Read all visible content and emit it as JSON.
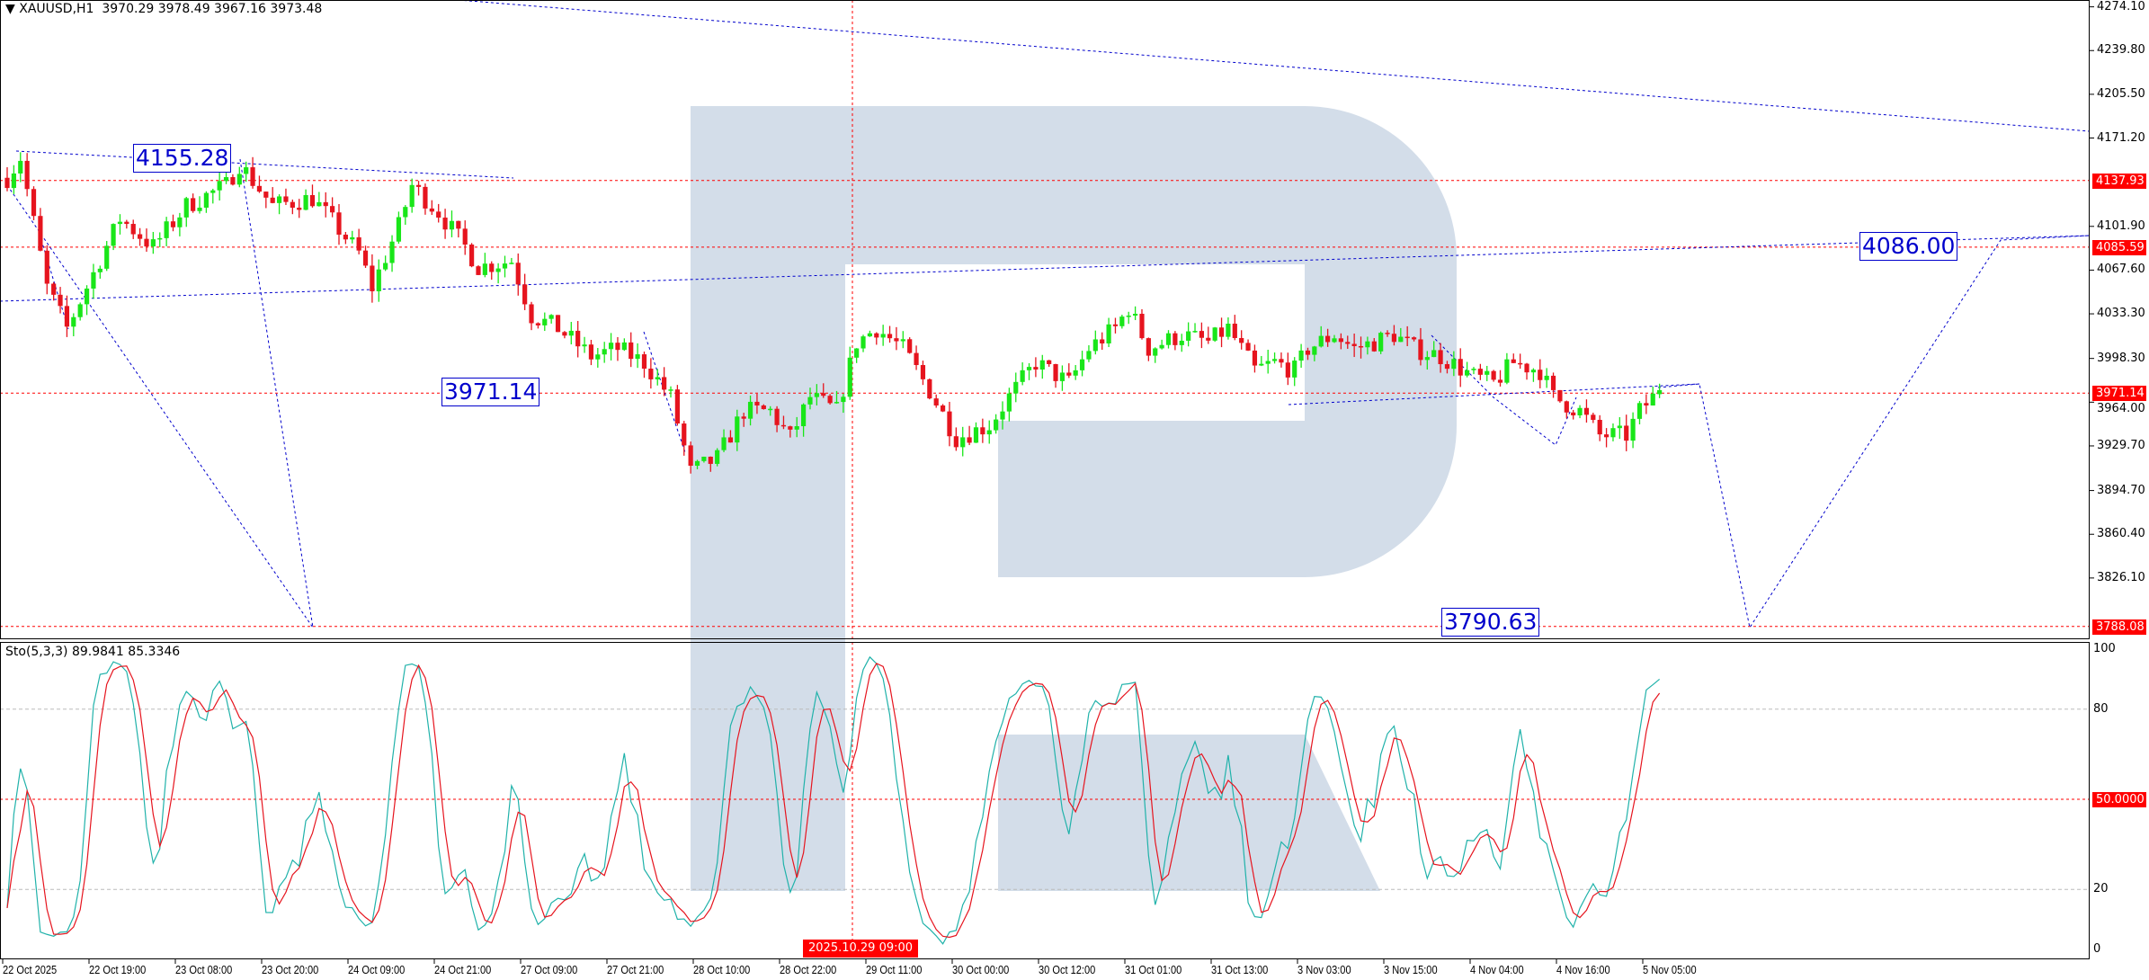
{
  "header": {
    "symbol": "XAUUSD,H1",
    "ohlc": "3970.29 3978.49 3967.16 3973.48",
    "collapse_icon": "triangle-down-icon"
  },
  "indicator": {
    "label": "Sto(5,3,3) 89.9841 85.3346"
  },
  "colors": {
    "bull": "#19e619",
    "bear": "#e6141e",
    "stoch_main": "#20b2aa",
    "stoch_signal": "#e6141e",
    "levels": "#ff0000",
    "drawings": "#0000cc",
    "watermark": "#d3dde9"
  },
  "price_axis": {
    "ticks": [
      "4274.10",
      "4239.80",
      "4205.50",
      "4171.20",
      "4101.90",
      "4067.60",
      "4033.30",
      "3998.30",
      "3964.00",
      "3929.70",
      "3894.70",
      "3860.40",
      "3826.10"
    ],
    "levels": [
      "4137.93",
      "4085.59",
      "3971.14",
      "3788.08"
    ]
  },
  "stoch_axis": {
    "ticks": [
      "100",
      "80",
      "20",
      "0"
    ],
    "level_label": "50.0000"
  },
  "time_axis": {
    "labels": [
      "22 Oct 2025",
      "22 Oct 19:00",
      "23 Oct 08:00",
      "23 Oct 20:00",
      "24 Oct 09:00",
      "24 Oct 21:00",
      "27 Oct 09:00",
      "27 Oct 21:00",
      "28 Oct 10:00",
      "28 Oct 22:00",
      "29 Oct 11:00",
      "30 Oct 00:00",
      "30 Oct 12:00",
      "31 Oct 01:00",
      "31 Oct 13:00",
      "3 Nov 03:00",
      "3 Nov 15:00",
      "4 Nov 04:00",
      "4 Nov 16:00",
      "5 Nov 05:00"
    ],
    "crosshair_label": "2025.10.29 09:00"
  },
  "annotations": [
    "4155.28",
    "3971.14",
    "4086.00",
    "3790.63"
  ],
  "chart_data": {
    "type": "candlestick",
    "symbol": "XAUUSD",
    "timeframe": "H1",
    "ylim": [
      3780,
      4280
    ],
    "last_bar": {
      "open": 3970.29,
      "high": 3978.49,
      "low": 3967.16,
      "close": 3973.48
    },
    "approx_close_path": [
      [
        0,
        4140
      ],
      [
        2,
        4156
      ],
      [
        6,
        4054
      ],
      [
        9,
        4022
      ],
      [
        13,
        4065
      ],
      [
        17,
        4108
      ],
      [
        22,
        4086
      ],
      [
        27,
        4118
      ],
      [
        33,
        4134
      ],
      [
        35,
        4151
      ],
      [
        40,
        4118
      ],
      [
        46,
        4124
      ],
      [
        53,
        4081
      ],
      [
        55,
        4054
      ],
      [
        59,
        4102
      ],
      [
        61,
        4134
      ],
      [
        65,
        4113
      ],
      [
        69,
        4086
      ],
      [
        71,
        4070
      ],
      [
        76,
        4075
      ],
      [
        79,
        4032
      ],
      [
        83,
        4022
      ],
      [
        88,
        4000
      ],
      [
        92,
        4006
      ],
      [
        96,
        3995
      ],
      [
        100,
        3968
      ],
      [
        103,
        3909
      ],
      [
        107,
        3920
      ],
      [
        111,
        3957
      ],
      [
        115,
        3957
      ],
      [
        118,
        3936
      ],
      [
        121,
        3968
      ],
      [
        125,
        3957
      ],
      [
        128,
        4011
      ],
      [
        131,
        4022
      ],
      [
        135,
        4006
      ],
      [
        139,
        3973
      ],
      [
        143,
        3936
      ],
      [
        148,
        3946
      ],
      [
        151,
        3968
      ],
      [
        155,
        3995
      ],
      [
        160,
        3979
      ],
      [
        163,
        4006
      ],
      [
        167,
        4022
      ],
      [
        169,
        4038
      ],
      [
        172,
        4006
      ],
      [
        177,
        4017
      ],
      [
        181,
        4011
      ],
      [
        184,
        4022
      ],
      [
        188,
        3989
      ],
      [
        191,
        3995
      ],
      [
        194,
        3989
      ],
      [
        196,
        4006
      ],
      [
        200,
        4017
      ],
      [
        203,
        4006
      ],
      [
        206,
        4011
      ],
      [
        209,
        4017
      ],
      [
        212,
        4006
      ],
      [
        216,
        4000
      ],
      [
        221,
        3984
      ],
      [
        224,
        3979
      ],
      [
        227,
        3995
      ],
      [
        231,
        3989
      ],
      [
        233,
        3968
      ],
      [
        237,
        3957
      ],
      [
        240,
        3938
      ],
      [
        244,
        3938
      ],
      [
        246,
        3957
      ],
      [
        249,
        3973
      ]
    ],
    "stochastic": {
      "k": 5,
      "d": 3,
      "slowing": 3,
      "last_main": 89.9841,
      "last_signal": 85.3346,
      "levels": [
        20,
        50,
        80
      ],
      "ylim": [
        0,
        100
      ]
    }
  }
}
